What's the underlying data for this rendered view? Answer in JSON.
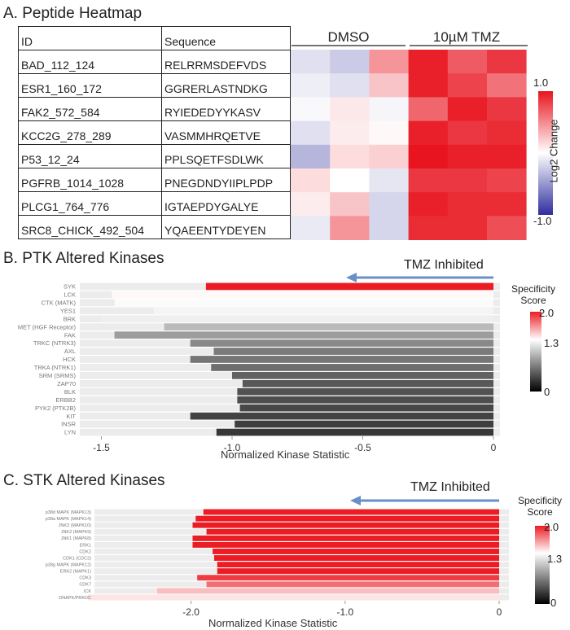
{
  "panels": {
    "a_title": "A. Peptide Heatmap",
    "b_title": "B. PTK Altered Kinases",
    "c_title": "C. STK Altered Kinases"
  },
  "chart_data": [
    {
      "type": "heatmap",
      "title": "A. Peptide Heatmap",
      "columns_header": {
        "id": "ID",
        "sequence": "Sequence"
      },
      "groups": [
        "DMSO",
        "10µM TMZ"
      ],
      "colorbar": {
        "label": "Log2 Change",
        "max_label": "1.0",
        "min_label": "-1.0",
        "range": [
          -1,
          1
        ]
      },
      "rows": [
        {
          "id": "BAD_112_124",
          "sequence": "RELRRMSDEFVDS",
          "values": [
            -0.15,
            -0.25,
            0.45,
            0.95,
            0.7,
            0.85
          ]
        },
        {
          "id": "ESR1_160_172",
          "sequence": "GGRERLASTNDKG",
          "values": [
            -0.08,
            -0.15,
            0.25,
            0.95,
            0.8,
            0.6
          ]
        },
        {
          "id": "FAK2_572_584",
          "sequence": "RYIEDEDYYKASV",
          "values": [
            -0.03,
            0.1,
            -0.05,
            0.65,
            0.95,
            0.85
          ]
        },
        {
          "id": "KCC2G_278_289",
          "sequence": "VASMMHRQETVE",
          "values": [
            -0.15,
            0.08,
            0.03,
            0.95,
            0.85,
            0.9
          ]
        },
        {
          "id": "P53_12_24",
          "sequence": "PPLSQETFSDLWK",
          "values": [
            -0.35,
            0.15,
            0.2,
            1.0,
            0.95,
            0.95
          ]
        },
        {
          "id": "PGFRB_1014_1028",
          "sequence": "PNEGDNDYIIPLPDP",
          "values": [
            0.15,
            0.0,
            -0.12,
            0.85,
            0.85,
            0.8
          ]
        },
        {
          "id": "PLCG1_764_776",
          "sequence": "IGTAEPDYGALYE",
          "values": [
            0.08,
            0.25,
            -0.2,
            0.95,
            0.9,
            0.9
          ]
        },
        {
          "id": "SRC8_CHICK_492_504",
          "sequence": "YQAEENTYDEYEN",
          "values": [
            -0.1,
            0.45,
            -0.2,
            0.9,
            0.9,
            0.75
          ]
        }
      ]
    },
    {
      "type": "bar",
      "title": "B. PTK Altered Kinases",
      "annotation": "TMZ Inhibited",
      "xlabel": "Normalized Kinase Statistic",
      "xlim": [
        -1.62,
        0
      ],
      "xticks": [
        -1.5,
        -1.0,
        -0.5,
        0
      ],
      "xtick_labels": [
        "-1.5",
        "-1.0",
        "-0.5",
        "0"
      ],
      "colorbar": {
        "title": "Specificity Score",
        "max_label": "2.0",
        "mid_label": "1.3",
        "min_label": "0",
        "range": [
          0,
          2
        ]
      },
      "categories": [
        "SYK",
        "LCK",
        "CTK (MATK)",
        "YES1",
        "BRK",
        "MET (HGF Receptor)",
        "FAK",
        "TRKC (NTRK3)",
        "AXL",
        "HCK",
        "TRKA (NTRK1)",
        "SRM (SRMS)",
        "ZAP70",
        "BLK",
        "ERBB2",
        "PYK2 (PTK2B)",
        "KIT",
        "INSR",
        "LYN"
      ],
      "values": [
        -1.1,
        -1.46,
        -1.45,
        -1.3,
        -1.5,
        -1.26,
        -1.45,
        -1.16,
        -1.07,
        -1.16,
        -1.08,
        -1.0,
        -0.96,
        -0.98,
        -0.98,
        -0.97,
        -1.16,
        -0.99,
        -1.06
      ],
      "score": [
        2.0,
        1.32,
        1.28,
        1.25,
        1.22,
        0.95,
        0.8,
        0.7,
        0.62,
        0.6,
        0.56,
        0.5,
        0.45,
        0.42,
        0.4,
        0.36,
        0.34,
        0.32,
        0.28
      ]
    },
    {
      "type": "bar",
      "title": "C. STK Altered Kinases",
      "annotation": "TMZ Inhibited",
      "xlabel": "Normalized Kinase Statistic",
      "xlim": [
        -2.68,
        0
      ],
      "xticks": [
        -2.0,
        -1.0,
        0
      ],
      "xtick_labels": [
        "-2.0",
        "-1.0",
        "0"
      ],
      "colorbar": {
        "title": "Specificity Score",
        "max_label": "2.0",
        "mid_label": "1.3",
        "min_label": "0",
        "range": [
          0,
          2
        ]
      },
      "categories": [
        "p38d MAPK (MAPK13)",
        "p38a MAPK (MAPK14)",
        "JNK3 (MAPK10)",
        "JNK2 (MAPK9)",
        "JNK1 (MAPK8)",
        "ERK1",
        "CDK2",
        "CDK1 (CDC2)",
        "p38g MAPK (MAPK12)",
        "ERK2 (MAPK1)",
        "CDK3",
        "CDK7",
        "ICK",
        "DNAPK/PRKDC"
      ],
      "values": [
        -1.92,
        -1.97,
        -1.99,
        -1.9,
        -1.99,
        -1.99,
        -1.86,
        -1.85,
        -1.83,
        -1.83,
        -1.96,
        -1.9,
        -2.22,
        -2.67
      ],
      "score": [
        2.0,
        2.0,
        2.0,
        2.0,
        2.0,
        2.0,
        2.0,
        2.0,
        2.0,
        2.0,
        1.9,
        1.75,
        1.5,
        1.38
      ]
    }
  ]
}
